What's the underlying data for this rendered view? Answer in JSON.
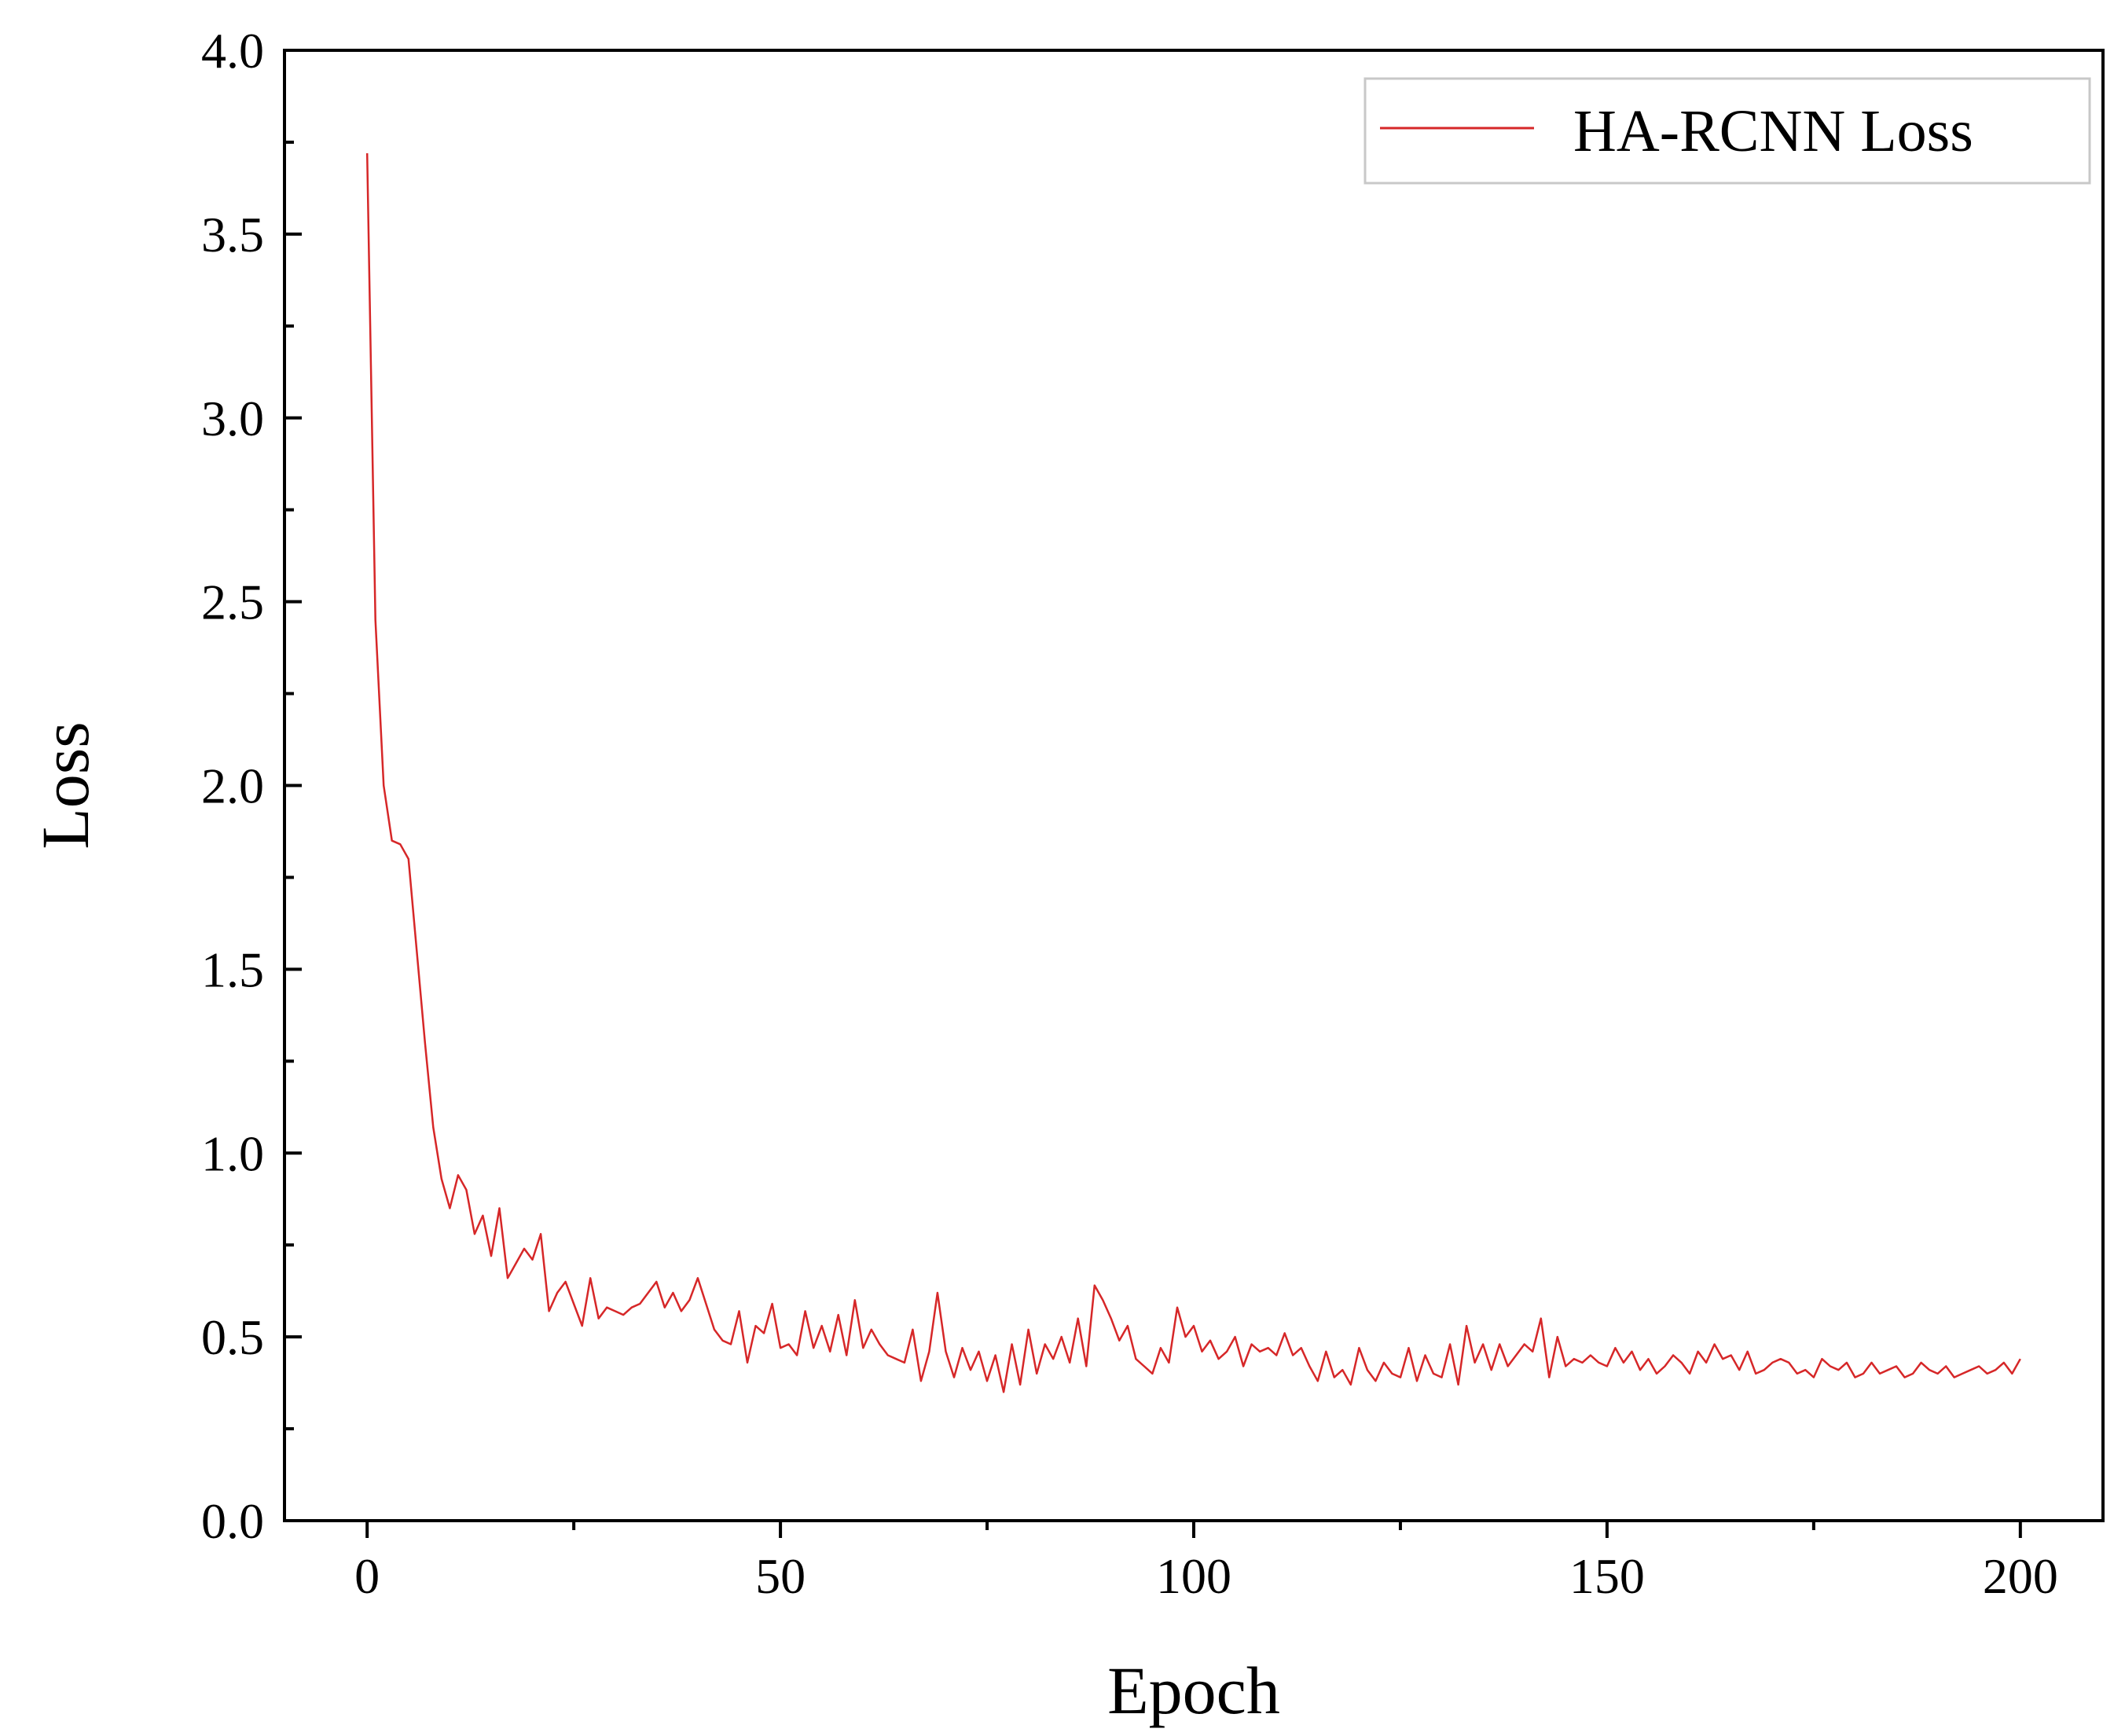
{
  "chart_data": {
    "type": "line",
    "xlabel": "Epoch",
    "ylabel": "Loss",
    "xlim": [
      -10,
      210
    ],
    "ylim": [
      0,
      4.0
    ],
    "xticks": [
      0,
      50,
      100,
      150,
      200
    ],
    "xtick_labels": [
      "0",
      "50",
      "100",
      "150",
      "200"
    ],
    "yticks": [
      0,
      0.5,
      1.0,
      1.5,
      2.0,
      2.5,
      3.0,
      3.5,
      4.0
    ],
    "ytick_labels": [
      "0.0",
      "0.5",
      "1.0",
      "1.5",
      "2.0",
      "2.5",
      "3.0",
      "3.5",
      "4.0"
    ],
    "grid": false,
    "legend_position": "top-right",
    "series": [
      {
        "name": "HA-RCNN Loss",
        "color": "#d62728",
        "x": [
          0,
          1,
          2,
          3,
          4,
          5,
          6,
          7,
          8,
          9,
          10,
          11,
          12,
          13,
          14,
          15,
          16,
          17,
          18,
          19,
          20,
          21,
          22,
          23,
          24,
          25,
          26,
          27,
          28,
          29,
          30,
          31,
          32,
          33,
          34,
          35,
          36,
          37,
          38,
          39,
          40,
          41,
          42,
          43,
          44,
          45,
          46,
          47,
          48,
          49,
          50,
          51,
          52,
          53,
          54,
          55,
          56,
          57,
          58,
          59,
          60,
          61,
          62,
          63,
          64,
          65,
          66,
          67,
          68,
          69,
          70,
          71,
          72,
          73,
          74,
          75,
          76,
          77,
          78,
          79,
          80,
          81,
          82,
          83,
          84,
          85,
          86,
          87,
          88,
          89,
          90,
          91,
          92,
          93,
          94,
          95,
          96,
          97,
          98,
          99,
          100,
          101,
          102,
          103,
          104,
          105,
          106,
          107,
          108,
          109,
          110,
          111,
          112,
          113,
          114,
          115,
          116,
          117,
          118,
          119,
          120,
          121,
          122,
          123,
          124,
          125,
          126,
          127,
          128,
          129,
          130,
          131,
          132,
          133,
          134,
          135,
          136,
          137,
          138,
          139,
          140,
          141,
          142,
          143,
          144,
          145,
          146,
          147,
          148,
          149,
          150,
          151,
          152,
          153,
          154,
          155,
          156,
          157,
          158,
          159,
          160,
          161,
          162,
          163,
          164,
          165,
          166,
          167,
          168,
          169,
          170,
          171,
          172,
          173,
          174,
          175,
          176,
          177,
          178,
          179,
          180,
          181,
          182,
          183,
          184,
          185,
          186,
          187,
          188,
          189,
          190,
          191,
          192,
          193,
          194,
          195,
          196,
          197,
          198,
          199,
          200
        ],
        "y": [
          3.72,
          2.45,
          2.0,
          1.85,
          1.84,
          1.8,
          1.55,
          1.3,
          1.07,
          0.93,
          0.85,
          0.94,
          0.9,
          0.78,
          0.83,
          0.72,
          0.85,
          0.66,
          0.7,
          0.74,
          0.71,
          0.78,
          0.57,
          0.62,
          0.65,
          0.59,
          0.53,
          0.66,
          0.55,
          0.58,
          0.57,
          0.56,
          0.58,
          0.59,
          0.62,
          0.65,
          0.58,
          0.62,
          0.57,
          0.6,
          0.66,
          0.59,
          0.52,
          0.49,
          0.48,
          0.57,
          0.43,
          0.53,
          0.51,
          0.59,
          0.47,
          0.48,
          0.45,
          0.57,
          0.47,
          0.53,
          0.46,
          0.56,
          0.45,
          0.6,
          0.47,
          0.52,
          0.48,
          0.45,
          0.44,
          0.43,
          0.52,
          0.38,
          0.46,
          0.62,
          0.46,
          0.39,
          0.47,
          0.41,
          0.46,
          0.38,
          0.45,
          0.35,
          0.48,
          0.37,
          0.52,
          0.4,
          0.48,
          0.44,
          0.5,
          0.43,
          0.55,
          0.42,
          0.64,
          0.6,
          0.55,
          0.49,
          0.53,
          0.44,
          0.42,
          0.4,
          0.47,
          0.43,
          0.58,
          0.5,
          0.53,
          0.46,
          0.49,
          0.44,
          0.46,
          0.5,
          0.42,
          0.48,
          0.46,
          0.47,
          0.45,
          0.51,
          0.45,
          0.47,
          0.42,
          0.38,
          0.46,
          0.39,
          0.41,
          0.37,
          0.47,
          0.41,
          0.38,
          0.43,
          0.4,
          0.39,
          0.47,
          0.38,
          0.45,
          0.4,
          0.39,
          0.48,
          0.37,
          0.53,
          0.43,
          0.48,
          0.41,
          0.48,
          0.42,
          0.45,
          0.48,
          0.46,
          0.55,
          0.39,
          0.5,
          0.42,
          0.44,
          0.43,
          0.45,
          0.43,
          0.42,
          0.47,
          0.43,
          0.46,
          0.41,
          0.44,
          0.4,
          0.42,
          0.45,
          0.43,
          0.4,
          0.46,
          0.43,
          0.48,
          0.44,
          0.45,
          0.41,
          0.46,
          0.4,
          0.41,
          0.43,
          0.44,
          0.43,
          0.4,
          0.41,
          0.39,
          0.44,
          0.42,
          0.41,
          0.43,
          0.39,
          0.4,
          0.43,
          0.4,
          0.41,
          0.42,
          0.39,
          0.4,
          0.43,
          0.41,
          0.4,
          0.42,
          0.39,
          0.4,
          0.41,
          0.42,
          0.4,
          0.41,
          0.43,
          0.4,
          0.44
        ]
      }
    ]
  }
}
